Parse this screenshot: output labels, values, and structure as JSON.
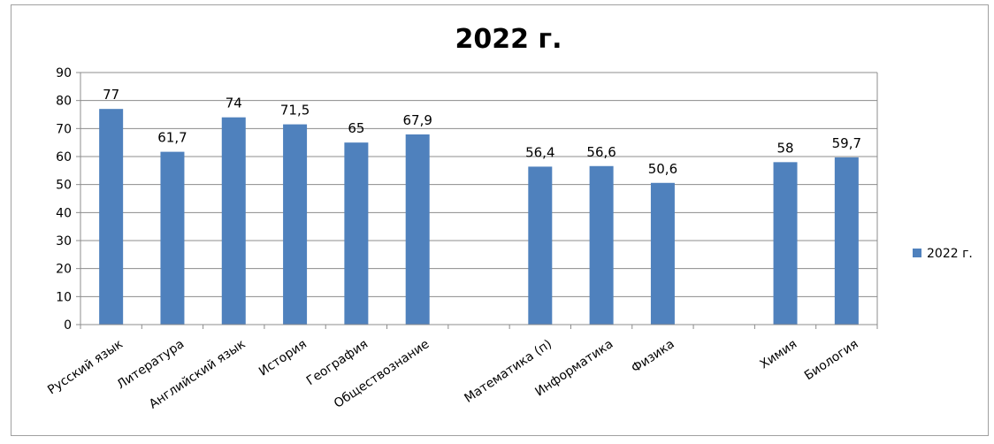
{
  "chart_data": {
    "type": "bar",
    "title": "2022 г.",
    "categories": [
      "Русский язык",
      "Литература",
      "Английский язык",
      "История",
      "География",
      "Обществознание",
      "",
      "Математика (п)",
      "Информатика",
      "Физика",
      "",
      "Химия",
      "Биология"
    ],
    "series": [
      {
        "name": "2022 г.",
        "values": [
          77,
          61.7,
          74,
          71.5,
          65,
          67.9,
          null,
          56.4,
          56.6,
          50.6,
          null,
          58,
          59.7
        ],
        "labels": [
          "77",
          "61,7",
          "74",
          "71,5",
          "65",
          "67,9",
          "",
          "56,4",
          "56,6",
          "50,6",
          "",
          "58",
          "59,7"
        ],
        "color": "#4F81BD"
      }
    ],
    "ylim": [
      0,
      90
    ],
    "yticks": [
      0,
      10,
      20,
      30,
      40,
      50,
      60,
      70,
      80,
      90
    ],
    "grid": true,
    "legend": "right",
    "xlabel": "",
    "ylabel": ""
  }
}
